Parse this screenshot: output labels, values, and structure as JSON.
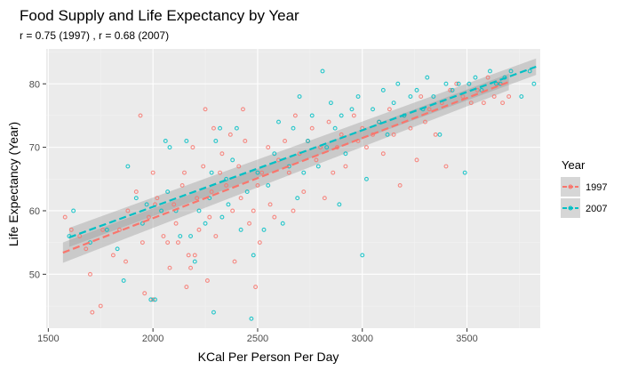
{
  "chart_data": {
    "type": "scatter",
    "title": "Food Supply and Life Expectancy by Year",
    "subtitle": "r =  0.75 (1997) , r =  0.68 (2007)",
    "xlabel": "KCal Per Person Per Day",
    "ylabel": "Life Expectancy (Year)",
    "xlim": [
      1490,
      3850
    ],
    "ylim": [
      41.5,
      85.5
    ],
    "x_ticks": [
      1500,
      2000,
      2500,
      3000,
      3500
    ],
    "y_ticks": [
      50,
      60,
      70,
      80
    ],
    "grid": true,
    "legend": {
      "title": "Year",
      "position": "right",
      "entries": [
        "1997",
        "2007"
      ]
    },
    "colors": {
      "1997": "#F8766D",
      "2007": "#00BFC4",
      "panel": "#EBEBEB",
      "grid": "#FFFFFF",
      "band": "#999999"
    },
    "series": [
      {
        "name": "1997",
        "color": "#F8766D",
        "trend": {
          "x": [
            1570,
            3700
          ],
          "y": [
            53.4,
            80.3
          ],
          "band": [
            [
              51.8,
              55.0
            ],
            [
              79.0,
              81.6
            ]
          ]
        },
        "points": [
          [
            1580,
            59
          ],
          [
            1610,
            57
          ],
          [
            1650,
            56
          ],
          [
            1680,
            54
          ],
          [
            1700,
            50
          ],
          [
            1710,
            44
          ],
          [
            1750,
            45
          ],
          [
            1760,
            57
          ],
          [
            1810,
            53
          ],
          [
            1840,
            57
          ],
          [
            1870,
            52
          ],
          [
            1880,
            60
          ],
          [
            1920,
            63
          ],
          [
            1940,
            75
          ],
          [
            1950,
            55
          ],
          [
            1960,
            47
          ],
          [
            1980,
            59
          ],
          [
            2000,
            46
          ],
          [
            2000,
            66
          ],
          [
            2010,
            61
          ],
          [
            2020,
            62
          ],
          [
            2050,
            56
          ],
          [
            2070,
            55
          ],
          [
            2080,
            51
          ],
          [
            2100,
            61
          ],
          [
            2110,
            58
          ],
          [
            2120,
            55
          ],
          [
            2140,
            64
          ],
          [
            2150,
            66
          ],
          [
            2160,
            48
          ],
          [
            2170,
            53
          ],
          [
            2180,
            51
          ],
          [
            2190,
            70
          ],
          [
            2200,
            53
          ],
          [
            2210,
            62
          ],
          [
            2220,
            57
          ],
          [
            2240,
            67
          ],
          [
            2250,
            76
          ],
          [
            2260,
            49
          ],
          [
            2270,
            59
          ],
          [
            2280,
            63
          ],
          [
            2290,
            73
          ],
          [
            2300,
            56
          ],
          [
            2320,
            66
          ],
          [
            2330,
            69
          ],
          [
            2350,
            64
          ],
          [
            2370,
            72
          ],
          [
            2380,
            60
          ],
          [
            2390,
            52
          ],
          [
            2410,
            67
          ],
          [
            2420,
            62
          ],
          [
            2430,
            76
          ],
          [
            2440,
            71
          ],
          [
            2460,
            58
          ],
          [
            2480,
            60
          ],
          [
            2490,
            48
          ],
          [
            2500,
            64
          ],
          [
            2510,
            55
          ],
          [
            2520,
            66
          ],
          [
            2550,
            70
          ],
          [
            2560,
            61
          ],
          [
            2580,
            59
          ],
          [
            2600,
            68
          ],
          [
            2630,
            71
          ],
          [
            2650,
            66
          ],
          [
            2670,
            60
          ],
          [
            2680,
            75
          ],
          [
            2700,
            69
          ],
          [
            2720,
            63
          ],
          [
            2740,
            71
          ],
          [
            2760,
            73
          ],
          [
            2780,
            68
          ],
          [
            2800,
            70
          ],
          [
            2820,
            62
          ],
          [
            2840,
            74
          ],
          [
            2860,
            66
          ],
          [
            2880,
            70
          ],
          [
            2900,
            72
          ],
          [
            2920,
            67
          ],
          [
            2960,
            75
          ],
          [
            2980,
            71
          ],
          [
            3000,
            73
          ],
          [
            3020,
            70
          ],
          [
            3050,
            72
          ],
          [
            3080,
            74
          ],
          [
            3100,
            69
          ],
          [
            3130,
            76
          ],
          [
            3150,
            72
          ],
          [
            3180,
            64
          ],
          [
            3200,
            75
          ],
          [
            3230,
            73
          ],
          [
            3260,
            68
          ],
          [
            3280,
            78
          ],
          [
            3300,
            74
          ],
          [
            3320,
            76
          ],
          [
            3350,
            72
          ],
          [
            3380,
            77
          ],
          [
            3400,
            67
          ],
          [
            3420,
            79
          ],
          [
            3450,
            80
          ],
          [
            3480,
            78
          ],
          [
            3520,
            77
          ],
          [
            3550,
            79
          ],
          [
            3580,
            77
          ],
          [
            3600,
            81
          ],
          [
            3630,
            78
          ],
          [
            3650,
            80
          ],
          [
            3670,
            77
          ],
          [
            3700,
            78
          ]
        ]
      },
      {
        "name": "2007",
        "color": "#00BFC4",
        "trend": {
          "x": [
            1600,
            3830
          ],
          "y": [
            55.8,
            82.7
          ],
          "band": [
            [
              54.3,
              57.3
            ],
            [
              81.4,
              84.0
            ]
          ]
        },
        "points": [
          [
            1600,
            56
          ],
          [
            1620,
            60
          ],
          [
            1700,
            55
          ],
          [
            1780,
            57
          ],
          [
            1830,
            54
          ],
          [
            1860,
            49
          ],
          [
            1880,
            67
          ],
          [
            1920,
            62
          ],
          [
            1950,
            58
          ],
          [
            1970,
            61
          ],
          [
            1990,
            46
          ],
          [
            2010,
            46
          ],
          [
            2040,
            60
          ],
          [
            2060,
            71
          ],
          [
            2070,
            63
          ],
          [
            2080,
            70
          ],
          [
            2110,
            60
          ],
          [
            2130,
            56
          ],
          [
            2160,
            71
          ],
          [
            2180,
            56
          ],
          [
            2200,
            52
          ],
          [
            2220,
            60
          ],
          [
            2250,
            58
          ],
          [
            2270,
            62
          ],
          [
            2280,
            66
          ],
          [
            2290,
            44
          ],
          [
            2300,
            71
          ],
          [
            2320,
            73
          ],
          [
            2330,
            59
          ],
          [
            2350,
            65
          ],
          [
            2360,
            61
          ],
          [
            2380,
            68
          ],
          [
            2400,
            73
          ],
          [
            2420,
            57
          ],
          [
            2450,
            63
          ],
          [
            2470,
            43
          ],
          [
            2480,
            53
          ],
          [
            2500,
            66
          ],
          [
            2530,
            57
          ],
          [
            2550,
            64
          ],
          [
            2580,
            69
          ],
          [
            2600,
            74
          ],
          [
            2620,
            58
          ],
          [
            2650,
            67
          ],
          [
            2670,
            73
          ],
          [
            2690,
            62
          ],
          [
            2700,
            78
          ],
          [
            2720,
            66
          ],
          [
            2740,
            71
          ],
          [
            2760,
            75
          ],
          [
            2790,
            67
          ],
          [
            2810,
            82
          ],
          [
            2830,
            70
          ],
          [
            2850,
            77
          ],
          [
            2870,
            73
          ],
          [
            2890,
            61
          ],
          [
            2900,
            75
          ],
          [
            2920,
            69
          ],
          [
            2950,
            76
          ],
          [
            2980,
            78
          ],
          [
            3000,
            53
          ],
          [
            3020,
            65
          ],
          [
            3050,
            76
          ],
          [
            3080,
            74
          ],
          [
            3100,
            79
          ],
          [
            3120,
            72
          ],
          [
            3150,
            77
          ],
          [
            3170,
            80
          ],
          [
            3200,
            75
          ],
          [
            3230,
            78
          ],
          [
            3260,
            79
          ],
          [
            3290,
            76
          ],
          [
            3310,
            81
          ],
          [
            3340,
            78
          ],
          [
            3370,
            72
          ],
          [
            3400,
            80
          ],
          [
            3430,
            79
          ],
          [
            3460,
            80
          ],
          [
            3490,
            66
          ],
          [
            3510,
            80
          ],
          [
            3540,
            81
          ],
          [
            3570,
            79
          ],
          [
            3610,
            82
          ],
          [
            3640,
            80
          ],
          [
            3660,
            80
          ],
          [
            3680,
            81
          ],
          [
            3710,
            82
          ],
          [
            3760,
            78
          ],
          [
            3800,
            82
          ],
          [
            3820,
            80
          ]
        ]
      }
    ]
  }
}
